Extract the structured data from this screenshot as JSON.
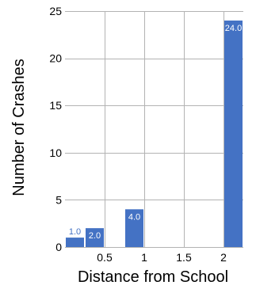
{
  "chart_data": {
    "type": "bar",
    "xlabel": "Distance from School",
    "ylabel": "Number of Crashes",
    "xlim": [
      0,
      2.25
    ],
    "ylim": [
      0,
      25
    ],
    "x_ticks": [
      0.5,
      1,
      1.5,
      2
    ],
    "x_tick_labels": [
      "0.5",
      "1",
      "1.5",
      "2"
    ],
    "y_ticks": [
      0,
      5,
      10,
      15,
      20,
      25
    ],
    "y_tick_labels": [
      "0",
      "5",
      "10",
      "15",
      "20",
      "25"
    ],
    "grid": true,
    "bar_width": 0.25,
    "bars": [
      {
        "x": 0.125,
        "value": 1,
        "label": "1.0"
      },
      {
        "x": 0.375,
        "value": 2,
        "label": "2.0"
      },
      {
        "x": 0.875,
        "value": 4,
        "label": "4.0"
      },
      {
        "x": 2.125,
        "value": 24,
        "label": "24.0"
      }
    ],
    "colors": {
      "bar": "#4472c4",
      "grid": "#b3b3b3",
      "label_inside": "#ffffff",
      "label_outside": "#4472c4"
    }
  }
}
